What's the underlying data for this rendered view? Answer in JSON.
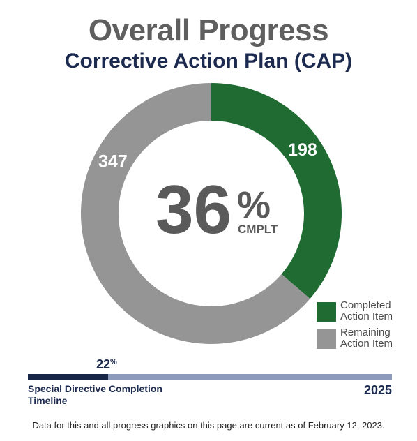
{
  "title": "Overall Progress",
  "subtitle": "Corrective Action Plan (CAP)",
  "chart_data": {
    "type": "pie",
    "hole": "donut",
    "labels": [
      "Completed Action Item",
      "Remaining Action Item"
    ],
    "values": [
      198,
      347
    ],
    "colors": [
      "#1f6b32",
      "#959595"
    ],
    "center_percent": "36",
    "center_percent_sign": "%",
    "center_label": "CMPLT",
    "legend_position": "bottom-right"
  },
  "legend": {
    "items": [
      {
        "label": "Completed Action Item",
        "color": "#1f6b32"
      },
      {
        "label": "Remaining Action Item",
        "color": "#959595"
      }
    ]
  },
  "timeline": {
    "percent_value": 22,
    "percent_number": "22",
    "percent_sign": "%",
    "label": "Special Directive Completion Timeline",
    "year": "2025",
    "fill_color": "#172646",
    "track_color": "#8e9abb"
  },
  "footnote": "Data for this and all progress graphics on this page are current as of February 12, 2023."
}
